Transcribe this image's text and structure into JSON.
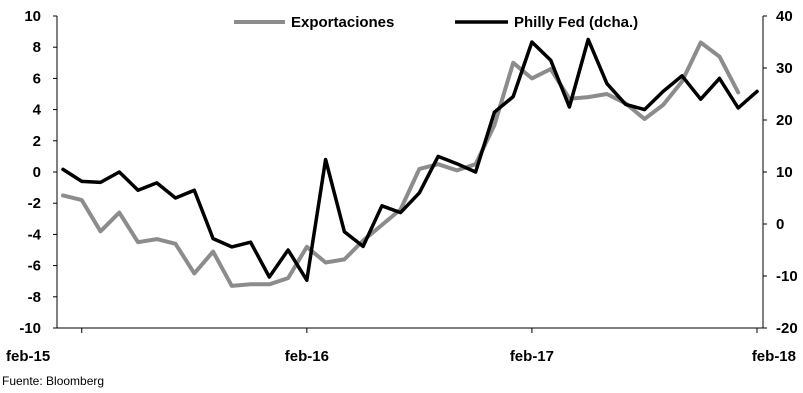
{
  "source_note": "Fuente: Bloomberg",
  "chart_data": {
    "type": "line",
    "x_tick_labels": [
      "feb-15",
      "feb-16",
      "feb-17",
      "feb-18"
    ],
    "x": [
      "2015-01",
      "2015-02",
      "2015-03",
      "2015-04",
      "2015-05",
      "2015-06",
      "2015-07",
      "2015-08",
      "2015-09",
      "2015-10",
      "2015-11",
      "2015-12",
      "2016-01",
      "2016-02",
      "2016-03",
      "2016-04",
      "2016-05",
      "2016-06",
      "2016-07",
      "2016-08",
      "2016-09",
      "2016-10",
      "2016-11",
      "2016-12",
      "2017-01",
      "2017-02",
      "2017-03",
      "2017-04",
      "2017-05",
      "2017-06",
      "2017-07",
      "2017-08",
      "2017-09",
      "2017-10",
      "2017-11",
      "2017-12",
      "2018-01",
      "2018-02"
    ],
    "y_left": {
      "ylim": [
        -10,
        10
      ],
      "ticks": [
        "10",
        "8",
        "6",
        "4",
        "2",
        "0",
        "-2",
        "-4",
        "-6",
        "-8",
        "-10"
      ]
    },
    "y_right": {
      "ylim": [
        -20,
        40
      ],
      "ticks": [
        "40",
        "30",
        "20",
        "10",
        "0",
        "-10",
        "-20"
      ]
    },
    "legend_position": "top",
    "series": [
      {
        "name": "Exportaciones",
        "axis": "left",
        "color": "#8c8c8c",
        "values": [
          -1.5,
          -1.8,
          -3.8,
          -2.6,
          -4.5,
          -4.3,
          -4.6,
          -6.5,
          -5.1,
          -7.3,
          -7.2,
          -7.2,
          -6.8,
          -4.8,
          -5.8,
          -5.6,
          -4.4,
          -3.4,
          -2.4,
          0.2,
          0.5,
          0.1,
          0.5,
          3.0,
          7.0,
          6.0,
          6.6,
          4.7,
          4.8,
          5.0,
          4.4,
          3.4,
          4.3,
          5.8,
          8.3,
          7.4,
          5.1,
          null
        ]
      },
      {
        "name": "Philly Fed (dcha.)",
        "axis": "right",
        "color": "#000000",
        "values": [
          10.5,
          8.2,
          8.0,
          10.0,
          6.5,
          7.9,
          5.0,
          6.5,
          -2.8,
          -4.4,
          -3.5,
          -10.2,
          -5.0,
          -10.8,
          12.4,
          -1.5,
          -4.3,
          3.5,
          2.2,
          6.0,
          13.0,
          11.6,
          10.0,
          21.5,
          24.5,
          35.0,
          31.5,
          22.5,
          35.5,
          27.0,
          23.0,
          22.0,
          25.5,
          28.5,
          24.0,
          28.0,
          22.3,
          25.5
        ]
      }
    ]
  }
}
